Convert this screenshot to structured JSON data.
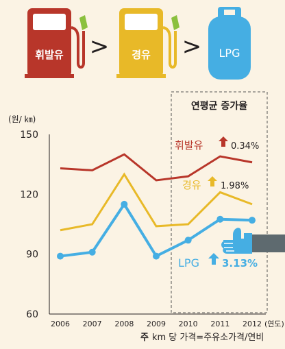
{
  "header": {
    "gasoline_label": "휘발유",
    "diesel_label": "경유",
    "lpg_label": "LPG",
    "separator": ">"
  },
  "colors": {
    "background": "#fbf3e4",
    "gasoline": "#b8362a",
    "diesel": "#e8b928",
    "lpg": "#45aee3",
    "text": "#231f20"
  },
  "box": {
    "title": "연평균 증가율",
    "rates": [
      {
        "series": "휘발유",
        "value": "0.34%"
      },
      {
        "series": "경유",
        "value": "1.98%"
      },
      {
        "series": "LPG",
        "value": "3.13%"
      }
    ]
  },
  "chart_data": {
    "type": "line",
    "ylabel": "(원/ ㎞)",
    "xlabel": "(연도)",
    "x": [
      2006,
      2007,
      2008,
      2009,
      2010,
      2011,
      2012
    ],
    "x_tick_labels": [
      "2006",
      "2007",
      "2008",
      "2009",
      "2010",
      "2011",
      "2012"
    ],
    "y_ticks": [
      60,
      90,
      120,
      150
    ],
    "y_tick_labels": [
      "60",
      "90",
      "120",
      "150"
    ],
    "ylim": [
      60,
      150
    ],
    "series": [
      {
        "name": "휘발유",
        "key": "gasoline",
        "values": [
          133,
          132,
          140,
          127,
          129,
          139,
          136
        ],
        "markers": false
      },
      {
        "name": "경유",
        "key": "diesel",
        "values": [
          102,
          105,
          130,
          104,
          105,
          121,
          115
        ],
        "markers": false
      },
      {
        "name": "LPG",
        "key": "lpg",
        "values": [
          89,
          91,
          115,
          89,
          97,
          107.5,
          107
        ],
        "markers": true
      }
    ]
  },
  "footnote": {
    "prefix": "주",
    "text": "km 당 가격=주유소가격/연비"
  }
}
